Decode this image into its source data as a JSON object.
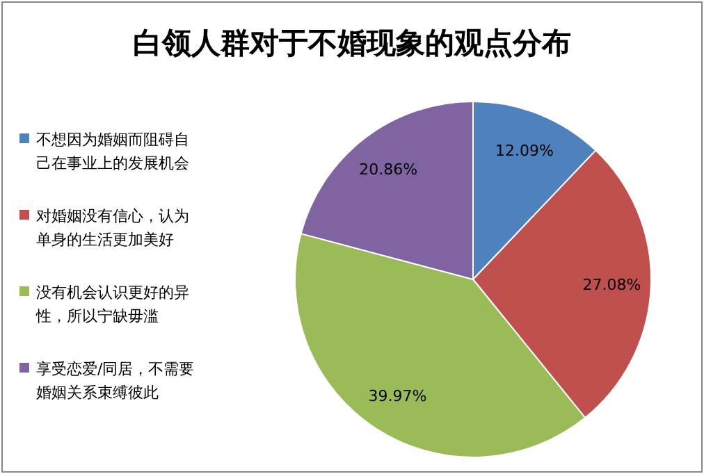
{
  "chart_data": {
    "type": "pie",
    "title": "白领人群对于不婚现象的观点分布",
    "categories": [
      "不想因为婚姻而阻碍自己在事业上的发展机会",
      "对婚姻没有信心，认为单身的生活更加美好",
      "没有机会认识更好的异性，所以宁缺毋滥",
      "享受恋爱/同居，不需要婚姻关系束缚彼此"
    ],
    "values": [
      12.09,
      27.08,
      39.97,
      20.86
    ],
    "colors": [
      "#4f81bd",
      "#c0504d",
      "#9bbb59",
      "#8064a2"
    ],
    "value_labels": [
      "12.09%",
      "27.08%",
      "39.97%",
      "20.86%"
    ],
    "legend": "left"
  }
}
